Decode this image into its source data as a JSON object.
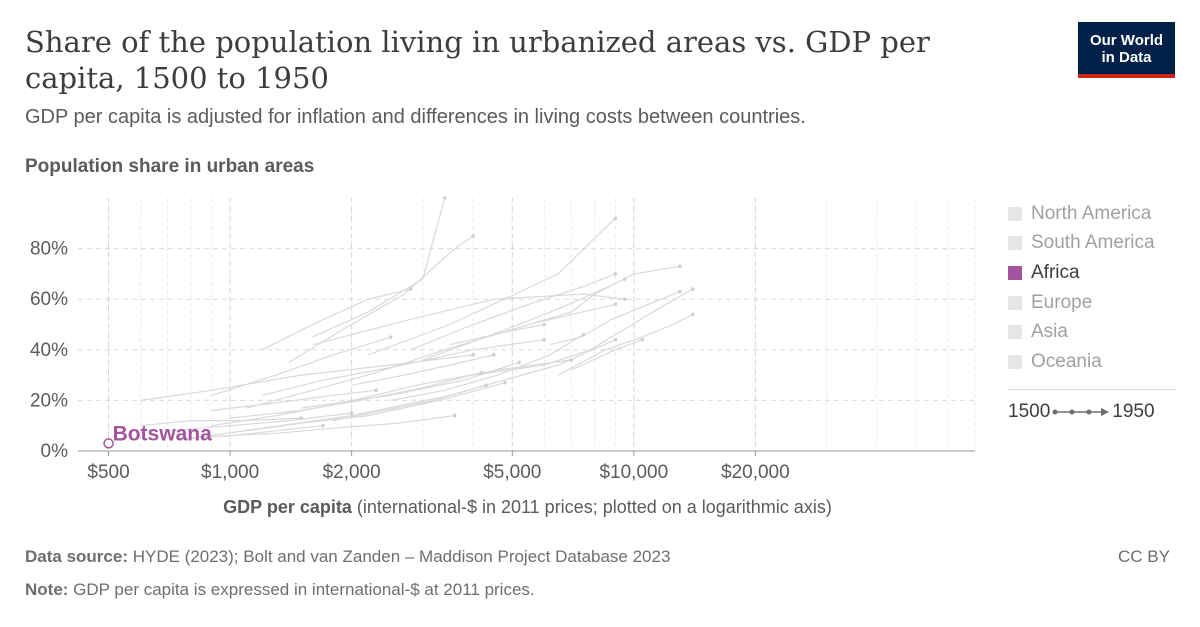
{
  "header": {
    "title": "Share of the population living in urbanized areas vs. GDP per capita, 1500 to 1950",
    "subtitle": "GDP per capita is adjusted for inflation and differences in living costs between countries.",
    "logo_line1": "Our World",
    "logo_line2": "in Data"
  },
  "colors": {
    "highlight": "#a2559c",
    "background_lines": "#d9d9d9",
    "grid": "#dcdcdc",
    "logo_bg": "#002147",
    "logo_accent": "#ce261e"
  },
  "legend": {
    "items": [
      {
        "label": "North America",
        "active": false
      },
      {
        "label": "South America",
        "active": false
      },
      {
        "label": "Africa",
        "active": true
      },
      {
        "label": "Europe",
        "active": false
      },
      {
        "label": "Asia",
        "active": false
      },
      {
        "label": "Oceania",
        "active": false
      }
    ],
    "timeline_start": "1500",
    "timeline_end": "1950"
  },
  "chart_data": {
    "type": "scatter",
    "connected": true,
    "ylabel": "Population share in urban areas",
    "xlabel_bold": "GDP per capita",
    "xlabel_rest": " (international-$ in 2011 prices; plotted on a logarithmic axis)",
    "x_scale": "log",
    "xlim": [
      420,
      70000
    ],
    "ylim": [
      0,
      100
    ],
    "x_ticks": [
      {
        "value": 500,
        "label": "$500"
      },
      {
        "value": 1000,
        "label": "$1,000"
      },
      {
        "value": 2000,
        "label": "$2,000"
      },
      {
        "value": 5000,
        "label": "$5,000"
      },
      {
        "value": 10000,
        "label": "$10,000"
      },
      {
        "value": 20000,
        "label": "$20,000"
      }
    ],
    "y_ticks": [
      {
        "value": 0,
        "label": "0%"
      },
      {
        "value": 20,
        "label": "20%"
      },
      {
        "value": 40,
        "label": "40%"
      },
      {
        "value": 60,
        "label": "60%"
      },
      {
        "value": 80,
        "label": "80%"
      }
    ],
    "highlighted_series": {
      "name": "Botswana",
      "region": "Africa",
      "points": [
        {
          "x": 500,
          "y": 3
        }
      ]
    },
    "background_series": [
      {
        "points": [
          [
            600,
            20
          ],
          [
            900,
            24
          ],
          [
            1500,
            30
          ],
          [
            2500,
            34
          ],
          [
            4000,
            38
          ]
        ]
      },
      {
        "points": [
          [
            800,
            5
          ],
          [
            1200,
            9
          ],
          [
            2000,
            14
          ],
          [
            3500,
            22
          ],
          [
            6500,
            34
          ],
          [
            9000,
            44
          ]
        ]
      },
      {
        "points": [
          [
            1100,
            17
          ],
          [
            1600,
            24
          ],
          [
            2300,
            31
          ],
          [
            3400,
            40
          ],
          [
            5500,
            50
          ],
          [
            9000,
            58
          ]
        ]
      },
      {
        "points": [
          [
            1400,
            35
          ],
          [
            1900,
            48
          ],
          [
            2700,
            62
          ],
          [
            3600,
            80
          ],
          [
            4000,
            85
          ]
        ]
      },
      {
        "points": [
          [
            1600,
            45
          ],
          [
            2200,
            55
          ],
          [
            3000,
            68
          ],
          [
            3400,
            100
          ]
        ]
      },
      {
        "points": [
          [
            2200,
            38
          ],
          [
            3500,
            50
          ],
          [
            6500,
            70
          ],
          [
            9000,
            92
          ]
        ]
      },
      {
        "points": [
          [
            1200,
            22
          ],
          [
            1700,
            28
          ],
          [
            2500,
            33
          ],
          [
            4000,
            40
          ],
          [
            6000,
            44
          ]
        ]
      },
      {
        "points": [
          [
            900,
            10
          ],
          [
            1300,
            14
          ],
          [
            1900,
            19
          ],
          [
            2900,
            26
          ],
          [
            4600,
            32
          ],
          [
            7000,
            36
          ]
        ]
      },
      {
        "points": [
          [
            4000,
            30
          ],
          [
            6000,
            34
          ],
          [
            7800,
            40
          ],
          [
            9000,
            46
          ],
          [
            12000,
            58
          ],
          [
            14000,
            64
          ]
        ]
      },
      {
        "points": [
          [
            6500,
            30
          ],
          [
            8500,
            40
          ],
          [
            10500,
            45
          ],
          [
            12500,
            50
          ],
          [
            14000,
            54
          ]
        ]
      },
      {
        "points": [
          [
            6200,
            42
          ],
          [
            7400,
            45
          ],
          [
            8800,
            52
          ],
          [
            10500,
            57
          ],
          [
            13000,
            63
          ]
        ]
      },
      {
        "points": [
          [
            1500,
            17
          ],
          [
            2500,
            22
          ],
          [
            3800,
            28
          ],
          [
            5200,
            35
          ]
        ]
      },
      {
        "points": [
          [
            700,
            8
          ],
          [
            1000,
            10
          ],
          [
            1400,
            12
          ],
          [
            2000,
            15
          ]
        ]
      },
      {
        "points": [
          [
            1000,
            13
          ],
          [
            1500,
            16
          ],
          [
            2100,
            20
          ],
          [
            3000,
            25
          ],
          [
            4200,
            31
          ]
        ]
      },
      {
        "points": [
          [
            3000,
            36
          ],
          [
            4300,
            45
          ],
          [
            5600,
            52
          ],
          [
            7400,
            60
          ],
          [
            9500,
            68
          ]
        ]
      },
      {
        "points": [
          [
            5000,
            48
          ],
          [
            7000,
            55
          ],
          [
            8000,
            62
          ],
          [
            10000,
            70
          ],
          [
            13000,
            73
          ]
        ]
      },
      {
        "points": [
          [
            2800,
            40
          ],
          [
            4000,
            50
          ],
          [
            5500,
            58
          ],
          [
            7500,
            65
          ],
          [
            9000,
            70
          ]
        ]
      },
      {
        "points": [
          [
            1600,
            42
          ],
          [
            2800,
            52
          ],
          [
            4500,
            60
          ],
          [
            7500,
            62
          ],
          [
            9500,
            60
          ]
        ]
      },
      {
        "points": [
          [
            900,
            16
          ],
          [
            1300,
            19
          ],
          [
            1800,
            22
          ],
          [
            2300,
            24
          ]
        ]
      },
      {
        "points": [
          [
            1100,
            8
          ],
          [
            1500,
            11
          ],
          [
            2200,
            14
          ],
          [
            3300,
            20
          ],
          [
            4800,
            27
          ]
        ]
      },
      {
        "points": [
          [
            7000,
            32
          ],
          [
            9000,
            40
          ],
          [
            10500,
            44
          ]
        ]
      },
      {
        "points": [
          [
            600,
            10
          ],
          [
            800,
            12
          ],
          [
            1100,
            12
          ],
          [
            1500,
            13
          ]
        ]
      },
      {
        "points": [
          [
            950,
            6
          ],
          [
            1300,
            7
          ],
          [
            1800,
            9
          ],
          [
            2600,
            11
          ],
          [
            3600,
            14
          ]
        ]
      },
      {
        "points": [
          [
            900,
            22
          ],
          [
            1300,
            30
          ],
          [
            1800,
            38
          ],
          [
            2500,
            45
          ]
        ]
      },
      {
        "points": [
          [
            1200,
            40
          ],
          [
            1600,
            50
          ],
          [
            2200,
            60
          ],
          [
            2800,
            64
          ]
        ]
      },
      {
        "points": [
          [
            2000,
            26
          ],
          [
            2700,
            30
          ],
          [
            3500,
            34
          ],
          [
            4500,
            38
          ]
        ]
      },
      {
        "points": [
          [
            750,
            5
          ],
          [
            1000,
            6
          ],
          [
            1300,
            8
          ],
          [
            1700,
            10
          ]
        ]
      },
      {
        "points": [
          [
            3500,
            42
          ],
          [
            4800,
            47
          ],
          [
            6000,
            50
          ]
        ]
      },
      {
        "points": [
          [
            2500,
            20
          ],
          [
            3400,
            24
          ],
          [
            4600,
            30
          ],
          [
            6200,
            38
          ],
          [
            7500,
            46
          ]
        ]
      },
      {
        "points": [
          [
            1800,
            12
          ],
          [
            2400,
            16
          ],
          [
            3200,
            20
          ],
          [
            4300,
            26
          ]
        ]
      }
    ]
  },
  "footer": {
    "source_label": "Data source:",
    "source_text": " HYDE (2023); Bolt and van Zanden – Maddison Project Database 2023",
    "note_label": "Note:",
    "note_text": " GDP per capita is expressed in international-$ at 2011 prices.",
    "license": "CC BY"
  }
}
